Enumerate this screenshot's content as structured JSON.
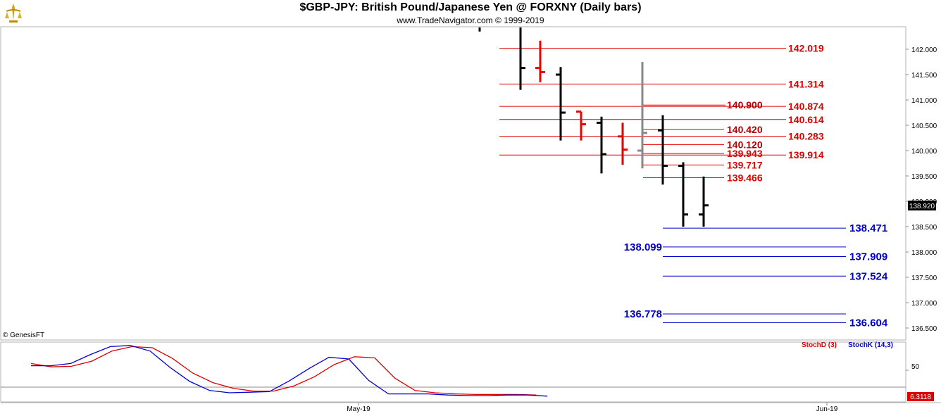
{
  "header": {
    "title": "$GBP-JPY:  British Pound/Japanese Yen @ FORXNY  (Daily bars)",
    "subtitle": "www.TradeNavigator.com © 1999-2019"
  },
  "footer": {
    "copyright": "© GenesisFT"
  },
  "colors": {
    "resistance": "#e00000",
    "support": "#0000cc",
    "bar_black": "#000000",
    "bar_red": "#ee0000",
    "bar_gray": "#888888",
    "stoch_d": "#dd0000",
    "stoch_k": "#0000cc"
  },
  "chart_data": [
    {
      "type": "bar",
      "subtype": "ohlc",
      "ylim": [
        136.3,
        142.6
      ],
      "y_ticks": [
        "142.000",
        "141.500",
        "141.000",
        "140.500",
        "140.000",
        "139.500",
        "139.000",
        "138.500",
        "138.000",
        "137.500",
        "137.000",
        "136.500"
      ],
      "last_price": "138.920",
      "bars": [
        {
          "open": null,
          "high": 142.9,
          "low": 142.35,
          "close": null,
          "color": "black"
        },
        {
          "open": 143.0,
          "high": 143.1,
          "low": 141.2,
          "close": 141.63,
          "color": "black"
        },
        {
          "open": 141.63,
          "high": 142.17,
          "low": 141.35,
          "close": 141.55,
          "color": "red"
        },
        {
          "open": 141.5,
          "high": 141.65,
          "low": 140.2,
          "close": 140.75,
          "color": "black"
        },
        {
          "open": 140.77,
          "high": 140.77,
          "low": 140.2,
          "close": 140.52,
          "color": "red"
        },
        {
          "open": 140.55,
          "high": 140.67,
          "low": 139.55,
          "close": 139.93,
          "color": "black"
        },
        {
          "open": 140.28,
          "high": 140.55,
          "low": 139.72,
          "close": 140.02,
          "color": "red"
        },
        {
          "open": 140.0,
          "high": 141.75,
          "low": 139.65,
          "close": 140.35,
          "color": "gray"
        },
        {
          "open": 140.4,
          "high": 140.7,
          "low": 139.33,
          "close": 139.7,
          "color": "black"
        },
        {
          "open": 139.7,
          "high": 139.77,
          "low": 138.5,
          "close": 138.74,
          "color": "black"
        },
        {
          "open": 138.74,
          "high": 139.49,
          "low": 138.5,
          "close": 138.92,
          "color": "black"
        }
      ],
      "resistance_levels": [
        {
          "value": 142.019,
          "label": "142.019"
        },
        {
          "value": 141.314,
          "label": "141.314"
        },
        {
          "value": 140.874,
          "label": "140.874"
        },
        {
          "value": 140.9,
          "label": "140.900"
        },
        {
          "value": 140.614,
          "label": "140.614"
        },
        {
          "value": 140.42,
          "label": "140.420"
        },
        {
          "value": 140.283,
          "label": "140.283"
        },
        {
          "value": 140.12,
          "label": "140.120"
        },
        {
          "value": 139.943,
          "label": "139.943"
        },
        {
          "value": 139.914,
          "label": "139.914"
        },
        {
          "value": 139.717,
          "label": "139.717"
        },
        {
          "value": 139.466,
          "label": "139.466"
        }
      ],
      "support_levels": [
        {
          "value": 138.471,
          "label": "138.471"
        },
        {
          "value": 138.099,
          "label": "138.099"
        },
        {
          "value": 137.909,
          "label": "137.909"
        },
        {
          "value": 137.524,
          "label": "137.524"
        },
        {
          "value": 136.778,
          "label": "136.778"
        },
        {
          "value": 136.604,
          "label": "136.604"
        }
      ]
    },
    {
      "type": "line",
      "ylim": [
        0,
        100
      ],
      "y_ticks": [
        "50"
      ],
      "last_value": "6.3118",
      "x_labels": [
        "May-19",
        "Jun-19"
      ],
      "series": [
        {
          "name": "StochD (3)",
          "color": "red",
          "values": [
            62,
            56,
            57,
            66,
            84,
            92,
            90,
            71,
            45,
            28,
            18,
            13,
            13,
            22,
            38,
            60,
            74,
            72,
            36,
            14,
            10,
            8,
            7,
            7,
            7,
            6
          ]
        },
        {
          "name": "StochK (14,3)",
          "color": "blue",
          "values": [
            58,
            58,
            62,
            78,
            92,
            94,
            84,
            55,
            30,
            14,
            10,
            11,
            12,
            31,
            53,
            73,
            70,
            32,
            8,
            8,
            8,
            6,
            5,
            5,
            6,
            6,
            4
          ]
        }
      ]
    }
  ]
}
